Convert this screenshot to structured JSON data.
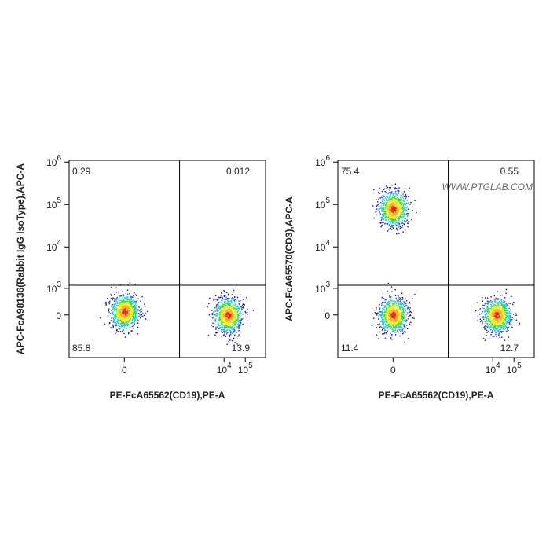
{
  "chart_data": [
    {
      "type": "flow",
      "xlabel": "PE-FcA65562(CD19),PE-A",
      "ylabel": "APC-FcA98136(Rabbit IgG IsoType),APC-A",
      "xlim": [
        -80,
        900000
      ],
      "ylim": [
        -2500,
        1100000
      ],
      "xticks": [
        0,
        {
          "value": 10000,
          "label": "10",
          "exponent": "4"
        },
        {
          "value": 100000,
          "label": "10",
          "exponent": "5"
        }
      ],
      "yticks": [
        0,
        {
          "value": 1000,
          "label": "10",
          "exponent": "3"
        },
        {
          "value": 10000,
          "label": "10",
          "exponent": "4"
        },
        {
          "value": 100000,
          "label": "10",
          "exponent": "5"
        },
        {
          "value": 1000000,
          "label": "10",
          "exponent": "6"
        }
      ],
      "gates": {
        "x": 80,
        "y": 1200
      },
      "quadrants": {
        "values": [
          0.29,
          0.012,
          85.8,
          13.9
        ]
      },
      "populations": [
        {
          "x": 0,
          "y": 100
        },
        {
          "x": 15000,
          "y": 0
        }
      ]
    },
    {
      "type": "flow",
      "xlabel": "PE-FcA65562(CD19),PE-A",
      "ylabel": "APC-FcA65570(CD3),APC-A",
      "watermark": "WWW.PTGLAB.COM",
      "xlim": [
        -80,
        900000
      ],
      "ylim": [
        -2500,
        1100000
      ],
      "xticks": [
        0,
        {
          "value": 10000,
          "label": "10",
          "exponent": "4"
        },
        {
          "value": 100000,
          "label": "10",
          "exponent": "5"
        }
      ],
      "yticks": [
        0,
        {
          "value": 1000,
          "label": "10",
          "exponent": "3"
        },
        {
          "value": 10000,
          "label": "10",
          "exponent": "4"
        },
        {
          "value": 100000,
          "label": "10",
          "exponent": "5"
        },
        {
          "value": 1000000,
          "label": "10",
          "exponent": "6"
        }
      ],
      "gates": {
        "x": 80,
        "y": 1200
      },
      "quadrants": {
        "values": [
          75.4,
          0.55,
          11.4,
          12.7
        ]
      },
      "populations": [
        {
          "x": 0,
          "y": 80000
        },
        {
          "x": 0,
          "y": 0
        },
        {
          "x": 15000,
          "y": 0
        }
      ]
    }
  ]
}
